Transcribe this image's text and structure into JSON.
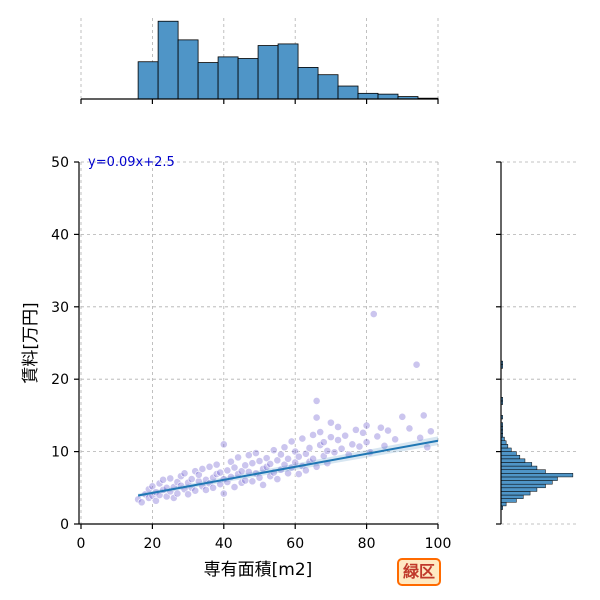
{
  "chart_data": [
    {
      "type": "scatter",
      "role": "joint",
      "xlabel": "専有面積[m2]",
      "ylabel": "賃料[万円]",
      "xlim": [
        0,
        100
      ],
      "ylim": [
        0,
        50
      ],
      "xticks": [
        0,
        20,
        40,
        60,
        80,
        100
      ],
      "yticks": [
        0,
        10,
        20,
        30,
        40,
        50
      ],
      "grid": true,
      "point_color": "#6a5acd",
      "annotation": "y=0.09x+2.5",
      "annotation_color": "#0000cc",
      "regression": {
        "slope": 0.09,
        "intercept": 2.5,
        "x_range": [
          16,
          100
        ],
        "color": "#1f77b4"
      },
      "points": [
        [
          16,
          3.4
        ],
        [
          17,
          3.0
        ],
        [
          18,
          4.1
        ],
        [
          19,
          3.6
        ],
        [
          19,
          4.8
        ],
        [
          20,
          3.9
        ],
        [
          20,
          5.2
        ],
        [
          21,
          4.4
        ],
        [
          21,
          3.2
        ],
        [
          22,
          5.6
        ],
        [
          22,
          4.0
        ],
        [
          23,
          4.7
        ],
        [
          23,
          6.1
        ],
        [
          24,
          3.8
        ],
        [
          24,
          5.0
        ],
        [
          25,
          4.5
        ],
        [
          25,
          6.3
        ],
        [
          26,
          5.1
        ],
        [
          26,
          3.6
        ],
        [
          27,
          5.8
        ],
        [
          27,
          4.2
        ],
        [
          28,
          6.6
        ],
        [
          28,
          5.3
        ],
        [
          29,
          4.8
        ],
        [
          29,
          7.0
        ],
        [
          30,
          5.7
        ],
        [
          30,
          4.1
        ],
        [
          31,
          6.2
        ],
        [
          31,
          5.0
        ],
        [
          32,
          7.3
        ],
        [
          32,
          4.6
        ],
        [
          33,
          5.9
        ],
        [
          33,
          6.8
        ],
        [
          34,
          5.2
        ],
        [
          34,
          7.6
        ],
        [
          35,
          6.1
        ],
        [
          35,
          4.7
        ],
        [
          36,
          5.6
        ],
        [
          36,
          7.9
        ],
        [
          37,
          6.4
        ],
        [
          37,
          5.0
        ],
        [
          38,
          6.9
        ],
        [
          38,
          8.2
        ],
        [
          39,
          5.5
        ],
        [
          39,
          7.1
        ],
        [
          40,
          6.2
        ],
        [
          40,
          11.0
        ],
        [
          40,
          4.2
        ],
        [
          41,
          7.4
        ],
        [
          41,
          5.8
        ],
        [
          42,
          8.6
        ],
        [
          42,
          6.5
        ],
        [
          43,
          5.1
        ],
        [
          43,
          7.8
        ],
        [
          44,
          6.9
        ],
        [
          44,
          9.2
        ],
        [
          45,
          5.7
        ],
        [
          45,
          7.3
        ],
        [
          46,
          8.1
        ],
        [
          46,
          6.0
        ],
        [
          47,
          9.5
        ],
        [
          47,
          7.2
        ],
        [
          48,
          5.9
        ],
        [
          48,
          8.4
        ],
        [
          49,
          7.0
        ],
        [
          49,
          9.8
        ],
        [
          50,
          6.4
        ],
        [
          50,
          8.7
        ],
        [
          51,
          7.6
        ],
        [
          51,
          5.4
        ],
        [
          52,
          9.1
        ],
        [
          52,
          7.9
        ],
        [
          53,
          6.6
        ],
        [
          53,
          8.3
        ],
        [
          54,
          10.2
        ],
        [
          54,
          7.1
        ],
        [
          55,
          8.8
        ],
        [
          55,
          6.2
        ],
        [
          56,
          9.6
        ],
        [
          56,
          7.5
        ],
        [
          57,
          8.2
        ],
        [
          57,
          10.6
        ],
        [
          58,
          7.0
        ],
        [
          58,
          9.0
        ],
        [
          59,
          11.4
        ],
        [
          59,
          7.8
        ],
        [
          60,
          8.5
        ],
        [
          60,
          10.0
        ],
        [
          61,
          6.9
        ],
        [
          61,
          9.3
        ],
        [
          62,
          11.8
        ],
        [
          62,
          8.0
        ],
        [
          63,
          9.7
        ],
        [
          63,
          7.4
        ],
        [
          64,
          10.5
        ],
        [
          64,
          8.6
        ],
        [
          65,
          12.3
        ],
        [
          65,
          9.0
        ],
        [
          66,
          14.7
        ],
        [
          66,
          17.0
        ],
        [
          66,
          7.9
        ],
        [
          67,
          10.9
        ],
        [
          67,
          12.7
        ],
        [
          68,
          9.4
        ],
        [
          68,
          11.3
        ],
        [
          69,
          10.1
        ],
        [
          69,
          8.4
        ],
        [
          70,
          12.0
        ],
        [
          70,
          14.0
        ],
        [
          71,
          9.9
        ],
        [
          72,
          11.6
        ],
        [
          72,
          13.4
        ],
        [
          73,
          10.4
        ],
        [
          74,
          12.2
        ],
        [
          75,
          9.6
        ],
        [
          76,
          11.0
        ],
        [
          77,
          13.0
        ],
        [
          78,
          10.7
        ],
        [
          79,
          12.6
        ],
        [
          80,
          11.3
        ],
        [
          80,
          13.6
        ],
        [
          81,
          9.9
        ],
        [
          82,
          29.0
        ],
        [
          83,
          12.1
        ],
        [
          84,
          13.3
        ],
        [
          85,
          10.8
        ],
        [
          86,
          12.9
        ],
        [
          88,
          11.7
        ],
        [
          90,
          14.8
        ],
        [
          92,
          13.2
        ],
        [
          94,
          22.0
        ],
        [
          95,
          11.9
        ],
        [
          96,
          15.0
        ],
        [
          98,
          12.8
        ],
        [
          97,
          10.6
        ]
      ]
    },
    {
      "type": "bar",
      "role": "marginal-x",
      "bin_edges": [
        16,
        21.6,
        27.2,
        32.8,
        38.4,
        44,
        49.6,
        55.2,
        60.8,
        66.4,
        72,
        77.6,
        83.2,
        88.8,
        94.4,
        100
      ],
      "values": [
        46,
        96,
        73,
        45,
        52,
        50,
        66,
        68,
        39,
        30,
        16,
        7,
        6,
        3,
        1
      ],
      "color": "#4f95c7",
      "edge_color": "#000000"
    },
    {
      "type": "bar",
      "role": "marginal-y",
      "bin_edges": [
        2.0,
        2.5,
        3.0,
        3.5,
        4.0,
        4.5,
        5.0,
        5.5,
        6.0,
        6.5,
        7.0,
        7.5,
        8.0,
        8.5,
        9.0,
        9.5,
        10.0,
        10.5,
        11.0,
        11.5,
        12.0,
        12.5,
        13.0,
        13.5,
        14.0,
        14.5,
        15.0
      ],
      "values": [
        1,
        3,
        9,
        13,
        17,
        21,
        26,
        30,
        33,
        42,
        26,
        21,
        18,
        14,
        11,
        9,
        6,
        4,
        3,
        2,
        1,
        1,
        1,
        1,
        0,
        1
      ],
      "color": "#4f95c7",
      "edge_color": "#000000",
      "outlier_bins": [
        [
          16.5,
          1
        ],
        [
          17.0,
          1
        ],
        [
          21.5,
          1
        ],
        [
          22.0,
          1
        ]
      ]
    }
  ],
  "badge": {
    "label": "緑区",
    "text_color": "#c0392b",
    "border_color": "#ff6a00",
    "bg_color": "#ffe9c2"
  }
}
